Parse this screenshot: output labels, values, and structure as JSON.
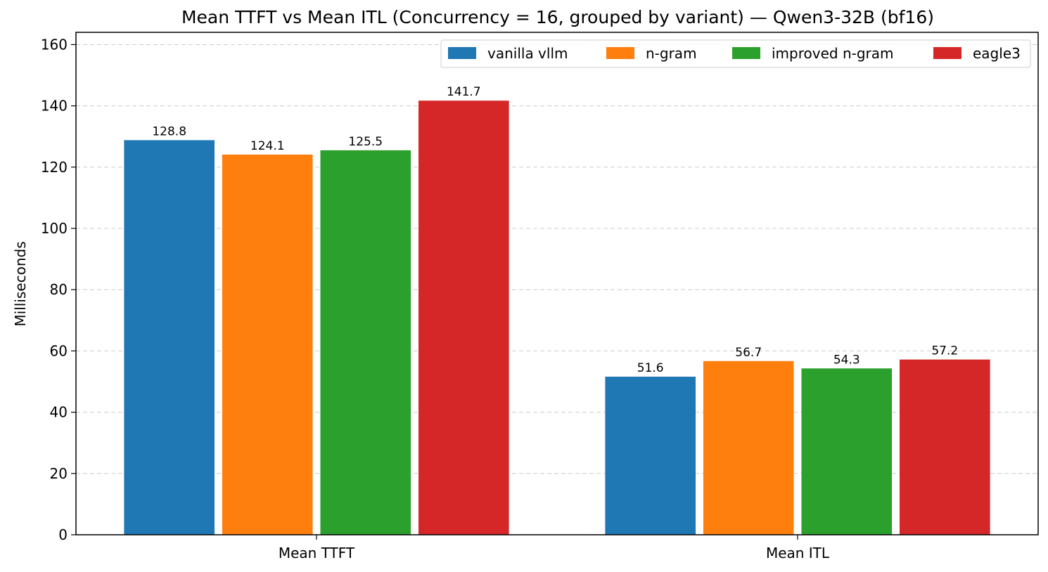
{
  "chart_data": {
    "type": "bar",
    "title": "Mean TTFT vs Mean ITL (Concurrency = 16, grouped by variant) — Qwen3-32B (bf16)",
    "xlabel": "",
    "ylabel": "Milliseconds",
    "categories": [
      "Mean TTFT",
      "Mean ITL"
    ],
    "series": [
      {
        "name": "vanilla vllm",
        "values": [
          128.8,
          51.6
        ],
        "labels": [
          "128.8",
          "51.6"
        ],
        "color": "#1f77b4"
      },
      {
        "name": "n-gram",
        "values": [
          124.1,
          56.7
        ],
        "labels": [
          "124.1",
          "56.7"
        ],
        "color": "#ff7f0e"
      },
      {
        "name": "improved n-gram",
        "values": [
          125.5,
          54.3
        ],
        "labels": [
          "125.5",
          "54.3"
        ],
        "color": "#2ca02c"
      },
      {
        "name": "eagle3",
        "values": [
          141.7,
          57.2
        ],
        "labels": [
          "141.7",
          "57.2"
        ],
        "color": "#d62728"
      }
    ],
    "ylim": [
      0,
      164
    ],
    "yticks": [
      "0",
      "20",
      "40",
      "60",
      "80",
      "100",
      "120",
      "140",
      "160"
    ],
    "grid": "horizontal-dashed",
    "legend_position": "top-right",
    "legend_columns": 4
  }
}
